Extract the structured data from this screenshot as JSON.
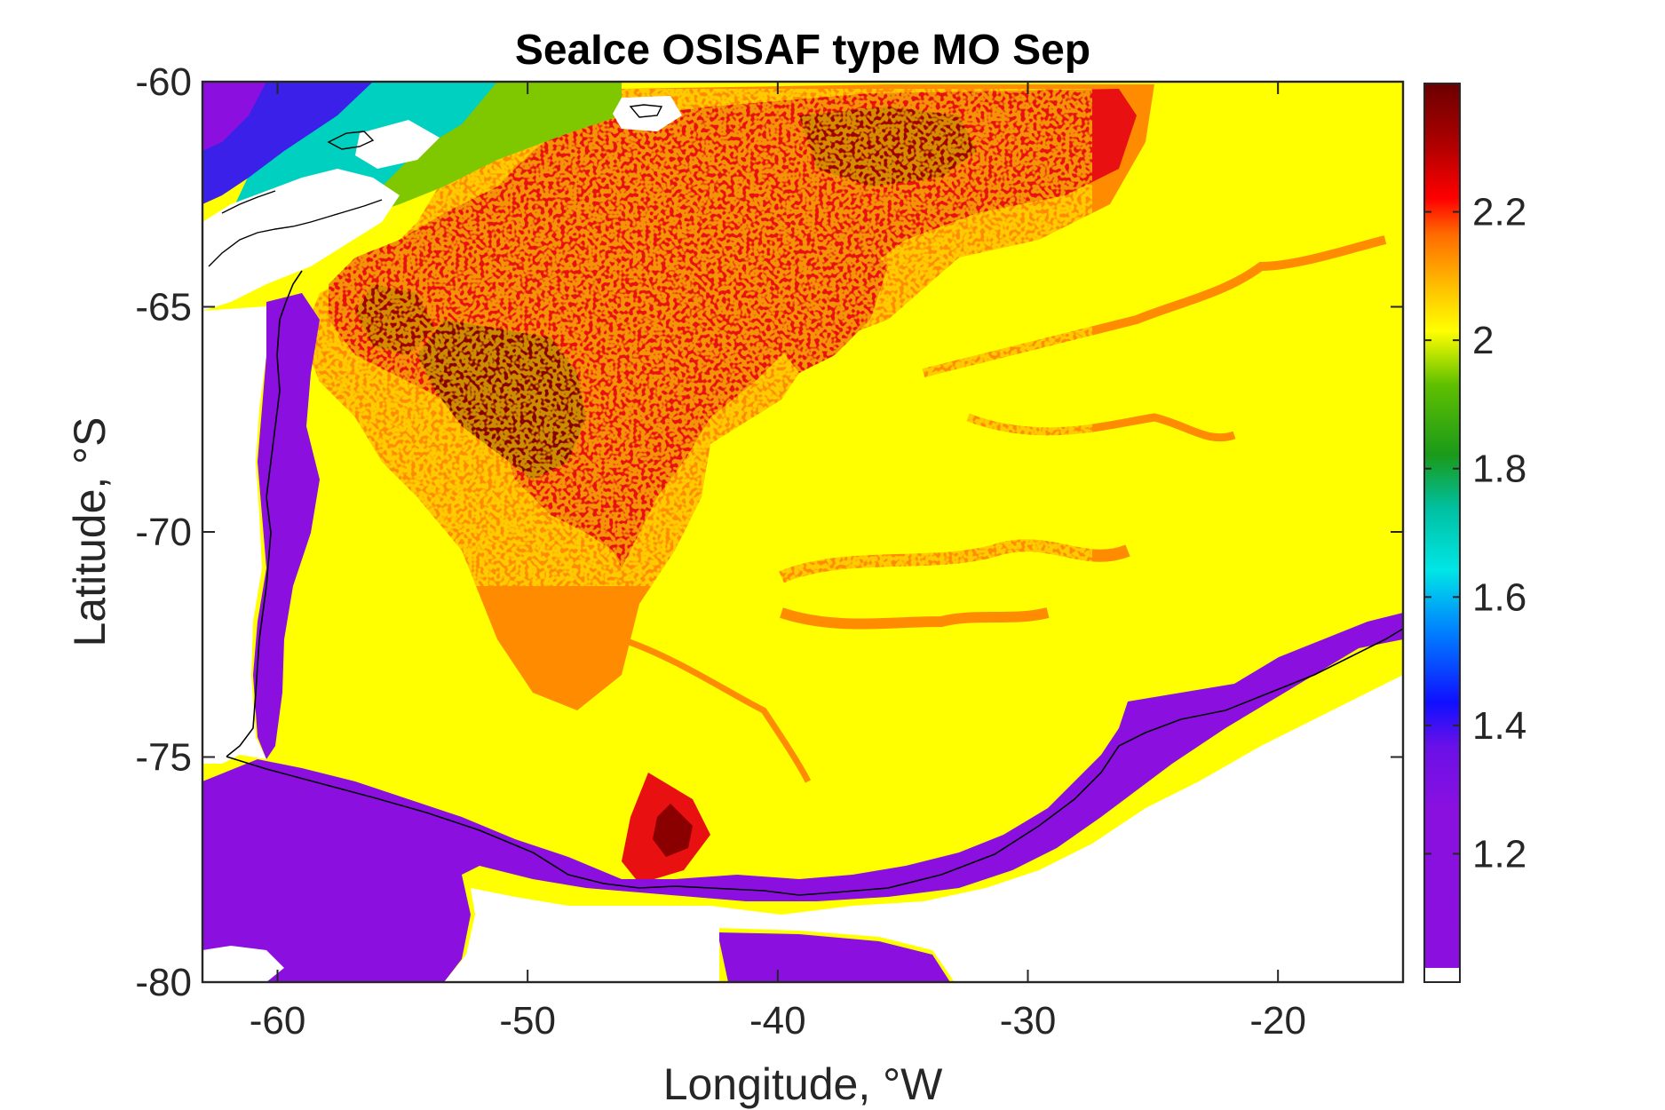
{
  "chart_data": {
    "type": "heatmap",
    "title": "SeaIce OSISAF type MO Sep",
    "xlabel": "Longitude, °W",
    "ylabel": "Latitude, °S",
    "xlim": [
      -63,
      -15
    ],
    "ylim": [
      -80,
      -60
    ],
    "x_ticks": [
      -60,
      -50,
      -40,
      -30,
      -20
    ],
    "x_tick_labels": [
      "-60",
      "-50",
      "-40",
      "-30",
      "-20"
    ],
    "y_ticks": [
      -60,
      -65,
      -70,
      -75,
      -80
    ],
    "y_tick_labels": [
      "-60",
      "-65",
      "-70",
      "-75",
      "-80"
    ],
    "colorbar": {
      "range": [
        1.0,
        2.4
      ],
      "ticks": [
        1.2,
        1.4,
        1.6,
        1.8,
        2.0,
        2.2
      ],
      "tick_labels": [
        "1.2",
        "1.4",
        "1.6",
        "1.8",
        "2",
        "2.2"
      ],
      "colormap": [
        "#ffffff",
        "#8b10e0",
        "#5a10e8",
        "#0010ff",
        "#0090ff",
        "#00e6e6",
        "#00a050",
        "#22a022",
        "#c8e600",
        "#ffff00",
        "#ff9a00",
        "#ff1a00",
        "#a00000",
        "#6b0000"
      ]
    },
    "regions": [
      {
        "name": "yellow_field",
        "value": 2.0,
        "color": "#ffff00"
      },
      {
        "name": "orange_band",
        "value": 2.1,
        "color": "#ff8c00"
      },
      {
        "name": "red_core",
        "value": 2.25,
        "color": "#e81010"
      },
      {
        "name": "dark_red_core",
        "value": 2.35,
        "color": "#8a0000"
      },
      {
        "name": "coastal_purple",
        "value": 1.05,
        "color": "#8b10e0"
      },
      {
        "name": "north_green",
        "value": 1.85,
        "color": "#7fc800"
      },
      {
        "name": "north_cyan",
        "value": 1.65,
        "color": "#00d0c0"
      },
      {
        "name": "north_blue",
        "value": 1.35,
        "color": "#3a20e8"
      },
      {
        "name": "land_nodata",
        "value": 1.0,
        "color": "#ffffff"
      }
    ],
    "grid": false
  }
}
